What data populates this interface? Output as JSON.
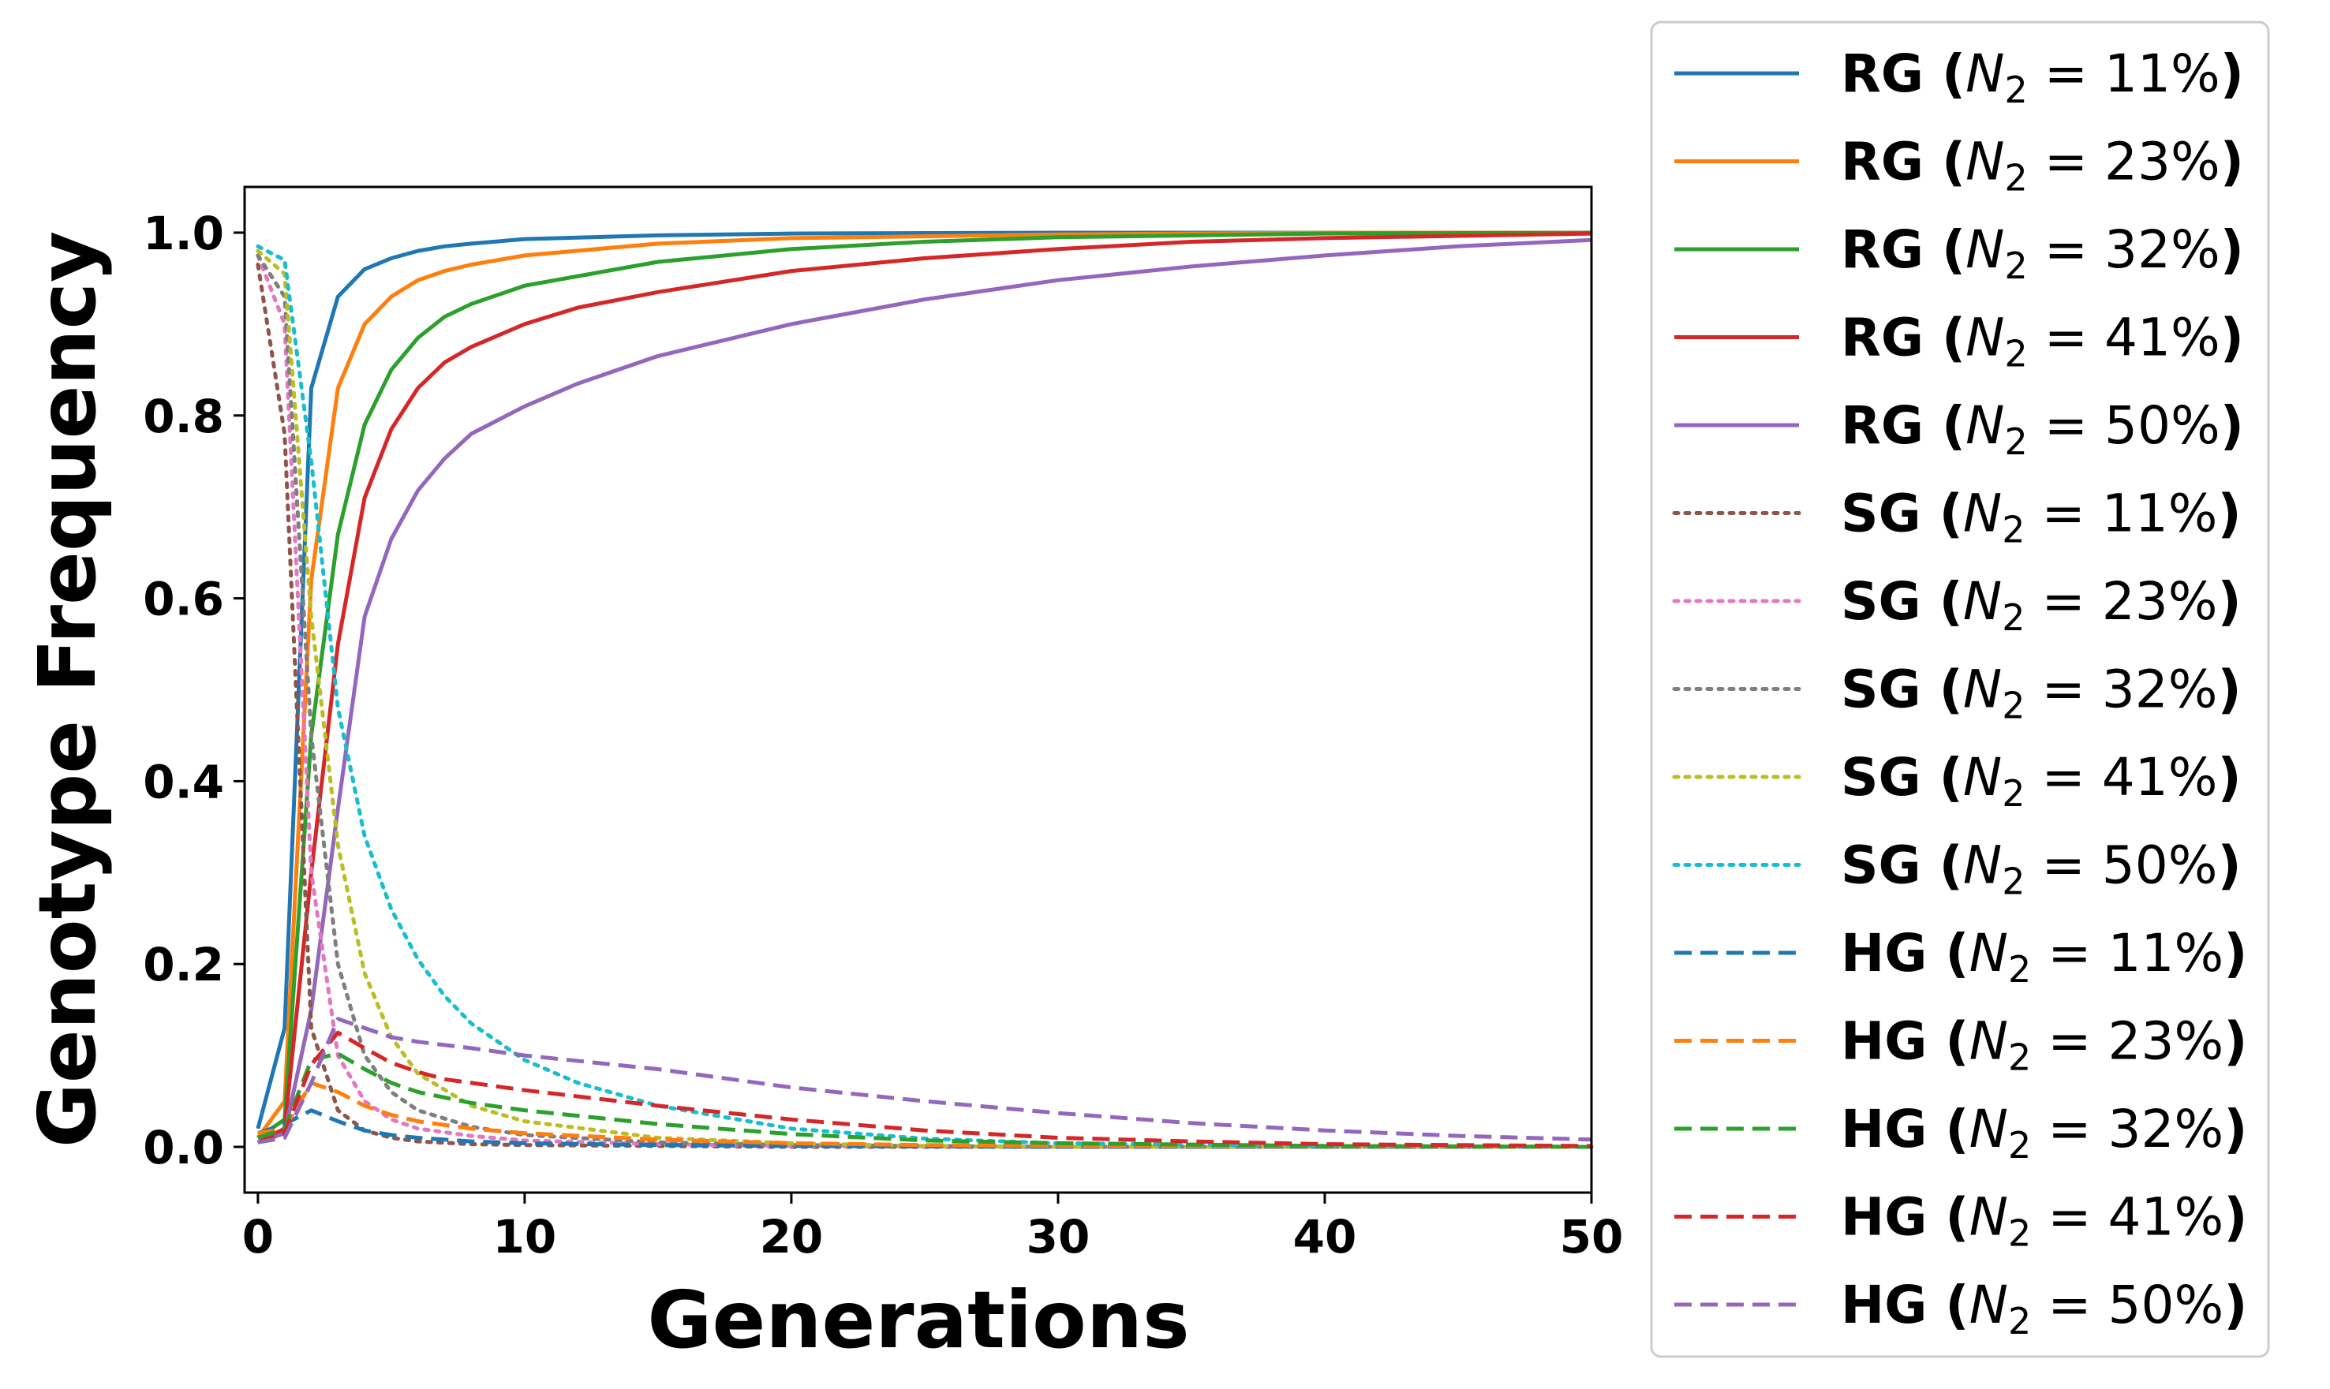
{
  "chart_data": {
    "type": "line",
    "xlabel": "Generations",
    "ylabel": "Genotype Frequency",
    "xlim": [
      -0.5,
      50
    ],
    "ylim": [
      -0.05,
      1.05
    ],
    "xticks": [
      "0",
      "10",
      "20",
      "30",
      "40",
      "50"
    ],
    "yticks": [
      "0.0",
      "0.2",
      "0.4",
      "0.6",
      "0.8",
      "1.0"
    ],
    "grid": false,
    "legend_placement": "outside-right",
    "series": [
      {
        "name": "RG (N2 = 11%)",
        "group": "RG",
        "n2": "11",
        "color": "#1f77b4",
        "style": "solid",
        "x": [
          0,
          1,
          2,
          3,
          4,
          5,
          6,
          7,
          8,
          10,
          15,
          20,
          30,
          40,
          50
        ],
        "y": [
          0.02,
          0.13,
          0.83,
          0.93,
          0.96,
          0.972,
          0.98,
          0.985,
          0.988,
          0.993,
          0.997,
          0.999,
          1.0,
          1.0,
          1.0
        ]
      },
      {
        "name": "RG (N2 = 23%)",
        "group": "RG",
        "n2": "23",
        "color": "#ff7f0e",
        "style": "solid",
        "x": [
          0,
          1,
          2,
          3,
          4,
          5,
          6,
          7,
          8,
          10,
          15,
          20,
          30,
          40,
          50
        ],
        "y": [
          0.01,
          0.05,
          0.62,
          0.83,
          0.9,
          0.93,
          0.948,
          0.958,
          0.965,
          0.975,
          0.988,
          0.994,
          0.998,
          1.0,
          1.0
        ]
      },
      {
        "name": "RG (N2 = 32%)",
        "group": "RG",
        "n2": "32",
        "color": "#2ca02c",
        "style": "solid",
        "x": [
          0,
          1,
          2,
          3,
          4,
          5,
          6,
          7,
          8,
          10,
          15,
          20,
          25,
          30,
          40,
          50
        ],
        "y": [
          0.01,
          0.03,
          0.45,
          0.67,
          0.79,
          0.85,
          0.885,
          0.908,
          0.922,
          0.942,
          0.968,
          0.982,
          0.99,
          0.995,
          0.999,
          1.0
        ]
      },
      {
        "name": "RG (N2 = 41%)",
        "group": "RG",
        "n2": "41",
        "color": "#d62728",
        "style": "solid",
        "x": [
          0,
          1,
          2,
          3,
          4,
          5,
          6,
          7,
          8,
          10,
          12,
          15,
          20,
          25,
          30,
          35,
          40,
          50
        ],
        "y": [
          0.005,
          0.02,
          0.3,
          0.55,
          0.71,
          0.785,
          0.83,
          0.858,
          0.875,
          0.9,
          0.918,
          0.935,
          0.958,
          0.972,
          0.982,
          0.99,
          0.994,
          0.999
        ]
      },
      {
        "name": "RG (N2 = 50%)",
        "group": "RG",
        "n2": "50",
        "color": "#9467bd",
        "style": "solid",
        "x": [
          0,
          1,
          2,
          3,
          4,
          5,
          6,
          7,
          8,
          10,
          12,
          15,
          20,
          25,
          30,
          35,
          40,
          45,
          50
        ],
        "y": [
          0.005,
          0.015,
          0.15,
          0.37,
          0.58,
          0.665,
          0.718,
          0.753,
          0.78,
          0.81,
          0.835,
          0.865,
          0.9,
          0.927,
          0.948,
          0.963,
          0.975,
          0.985,
          0.992
        ]
      },
      {
        "name": "SG (N2 = 11%)",
        "group": "SG",
        "n2": "11",
        "color": "#8c564b",
        "style": "dotted",
        "x": [
          0,
          1,
          2,
          3,
          4,
          5,
          6,
          8,
          10,
          15,
          20,
          30,
          50
        ],
        "y": [
          0.965,
          0.78,
          0.13,
          0.04,
          0.018,
          0.01,
          0.006,
          0.003,
          0.002,
          0.001,
          0.0,
          0.0,
          0.0
        ]
      },
      {
        "name": "SG (N2 = 23%)",
        "group": "SG",
        "n2": "23",
        "color": "#e377c2",
        "style": "dotted",
        "x": [
          0,
          1,
          2,
          3,
          4,
          5,
          6,
          8,
          10,
          15,
          20,
          30,
          50
        ],
        "y": [
          0.975,
          0.9,
          0.3,
          0.1,
          0.05,
          0.03,
          0.02,
          0.012,
          0.007,
          0.003,
          0.001,
          0.0,
          0.0
        ]
      },
      {
        "name": "SG (N2 = 32%)",
        "group": "SG",
        "n2": "32",
        "color": "#7f7f7f",
        "style": "dotted",
        "x": [
          0,
          1,
          2,
          3,
          4,
          5,
          6,
          8,
          10,
          15,
          20,
          30,
          50
        ],
        "y": [
          0.975,
          0.93,
          0.45,
          0.2,
          0.1,
          0.06,
          0.04,
          0.022,
          0.013,
          0.005,
          0.002,
          0.0,
          0.0
        ]
      },
      {
        "name": "SG (N2 = 41%)",
        "group": "SG",
        "n2": "41",
        "color": "#bcbd22",
        "style": "dotted",
        "x": [
          0,
          1,
          2,
          3,
          4,
          5,
          6,
          8,
          10,
          15,
          20,
          25,
          30,
          50
        ],
        "y": [
          0.98,
          0.955,
          0.58,
          0.33,
          0.19,
          0.12,
          0.08,
          0.045,
          0.028,
          0.01,
          0.004,
          0.001,
          0.0,
          0.0
        ]
      },
      {
        "name": "SG (N2 = 50%)",
        "group": "SG",
        "n2": "50",
        "color": "#17becf",
        "style": "dotted",
        "x": [
          0,
          1,
          2,
          3,
          4,
          5,
          6,
          7,
          8,
          10,
          12,
          15,
          20,
          25,
          30,
          40,
          50
        ],
        "y": [
          0.985,
          0.97,
          0.75,
          0.48,
          0.34,
          0.26,
          0.205,
          0.165,
          0.135,
          0.095,
          0.07,
          0.045,
          0.02,
          0.009,
          0.004,
          0.001,
          0.0
        ]
      },
      {
        "name": "HG (N2 = 11%)",
        "group": "HG",
        "n2": "11",
        "color": "#1f77b4",
        "style": "dashed",
        "x": [
          0,
          1,
          2,
          3,
          4,
          5,
          6,
          8,
          10,
          15,
          20,
          30,
          50
        ],
        "y": [
          0.015,
          0.025,
          0.04,
          0.028,
          0.018,
          0.013,
          0.01,
          0.006,
          0.004,
          0.002,
          0.001,
          0.0,
          0.0
        ]
      },
      {
        "name": "HG (N2 = 23%)",
        "group": "HG",
        "n2": "23",
        "color": "#ff7f0e",
        "style": "dashed",
        "x": [
          0,
          1,
          2,
          3,
          4,
          5,
          6,
          8,
          10,
          15,
          20,
          25,
          30,
          50
        ],
        "y": [
          0.015,
          0.02,
          0.07,
          0.06,
          0.045,
          0.035,
          0.028,
          0.02,
          0.015,
          0.008,
          0.004,
          0.002,
          0.001,
          0.0
        ]
      },
      {
        "name": "HG (N2 = 32%)",
        "group": "HG",
        "n2": "32",
        "color": "#2ca02c",
        "style": "dashed",
        "x": [
          0,
          1,
          2,
          3,
          4,
          5,
          6,
          8,
          10,
          15,
          20,
          25,
          30,
          40,
          50
        ],
        "y": [
          0.01,
          0.02,
          0.095,
          0.102,
          0.085,
          0.07,
          0.06,
          0.048,
          0.04,
          0.025,
          0.014,
          0.007,
          0.004,
          0.001,
          0.0
        ]
      },
      {
        "name": "HG (N2 = 41%)",
        "group": "HG",
        "n2": "41",
        "color": "#d62728",
        "style": "dashed",
        "x": [
          0,
          1,
          2,
          3,
          4,
          5,
          6,
          7,
          8,
          10,
          15,
          20,
          25,
          30,
          35,
          40,
          50
        ],
        "y": [
          0.005,
          0.015,
          0.09,
          0.125,
          0.108,
          0.092,
          0.082,
          0.074,
          0.07,
          0.062,
          0.045,
          0.03,
          0.018,
          0.01,
          0.006,
          0.003,
          0.001
        ]
      },
      {
        "name": "HG (N2 = 50%)",
        "group": "HG",
        "n2": "50",
        "color": "#9467bd",
        "style": "dashed",
        "x": [
          0,
          1,
          2,
          3,
          4,
          5,
          6,
          8,
          10,
          15,
          20,
          25,
          30,
          35,
          40,
          45,
          50
        ],
        "y": [
          0.005,
          0.01,
          0.07,
          0.14,
          0.13,
          0.12,
          0.115,
          0.108,
          0.1,
          0.085,
          0.065,
          0.05,
          0.037,
          0.026,
          0.018,
          0.012,
          0.008
        ]
      }
    ]
  }
}
